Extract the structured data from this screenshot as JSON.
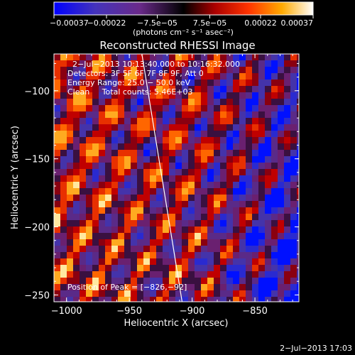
{
  "chart_data": {
    "type": "heatmap",
    "title": "Reconstructed RHESSI Image",
    "xlabel": "Heliocentric X (arcsec)",
    "ylabel": "Heliocentric Y (arcsec)",
    "xlim": [
      -1010,
      -815
    ],
    "ylim": [
      -255,
      -73
    ],
    "x_ticks": [
      -1000,
      -950,
      -900,
      -850
    ],
    "y_ticks": [
      -100,
      -150,
      -200,
      -250
    ],
    "x_tick_labels": [
      "−1000",
      "−950",
      "−900",
      "−850"
    ],
    "y_tick_labels": [
      "−100",
      "−150",
      "−200",
      "−250"
    ],
    "colorbar": {
      "range": [
        -0.00037,
        0.00037
      ],
      "tick_values": [
        -0.00037,
        -0.00022,
        -7.5e-05,
        7.5e-05,
        0.00022,
        0.00037
      ],
      "tick_labels": [
        "−0.00037",
        "−0.00022",
        "−7.5e−05",
        "7.5e−05",
        "0.00022",
        "0.00037"
      ],
      "units": "(photons cm⁻² s⁻¹ asec⁻²)"
    },
    "limb_line": [
      [
        -940,
        -73
      ],
      [
        -908,
        -255
      ]
    ],
    "annotations": {
      "time": "2−Jul−2013 10:13:40.000 to 10:16:32.000",
      "detectors": "Detectors: 3F 5F 6F 7F 8F 9F, Att 0",
      "energy": "Energy Range: 25.0 − 50.0 keV",
      "clean": "Clean     Total counts: 5.46E+03",
      "peak": "Position of Peak = [−826,−92]"
    },
    "colors": {
      "background": "#000000",
      "axes": "#ffffff"
    }
  },
  "footer": {
    "timestamp": "2−Jul−2013 17:03"
  }
}
